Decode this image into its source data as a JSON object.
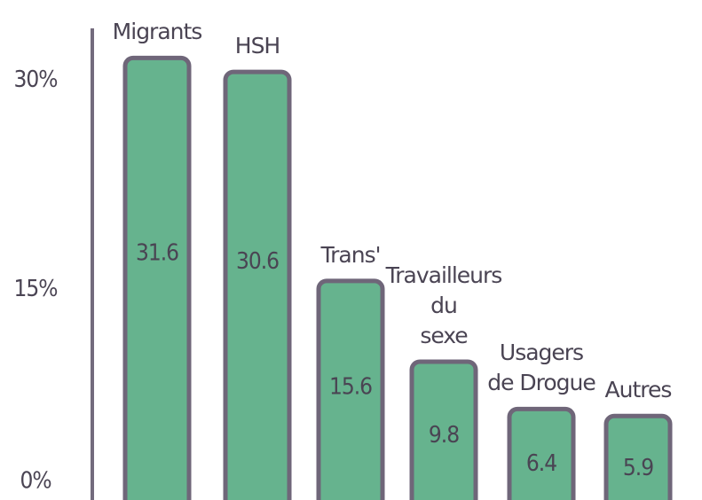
{
  "chart_data": {
    "type": "bar",
    "categories": [
      "Migrants",
      "HSH",
      "Trans'",
      "Travailleurs\ndu\nsexe",
      "Usagers\nde Drogue",
      "Autres"
    ],
    "values": [
      31.6,
      30.6,
      15.6,
      9.8,
      6.4,
      5.9
    ],
    "color": "#66b38e",
    "ylim": [
      0,
      35
    ],
    "yticks": [
      {
        "value": 0,
        "label": "0%"
      },
      {
        "value": 15,
        "label": "15%"
      },
      {
        "value": 30,
        "label": "30%"
      }
    ]
  }
}
